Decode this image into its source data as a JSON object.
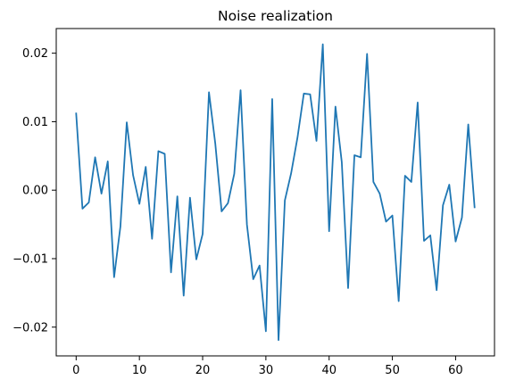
{
  "chart_data": {
    "type": "line",
    "title": "Noise realization",
    "xlabel": "",
    "ylabel": "",
    "xlim": [
      -3.15,
      66.15
    ],
    "ylim": [
      -0.0242,
      0.0236
    ],
    "grid": false,
    "x_ticks": [
      0,
      10,
      20,
      30,
      40,
      50,
      60
    ],
    "x_tick_labels": [
      "0",
      "10",
      "20",
      "30",
      "40",
      "50",
      "60"
    ],
    "y_ticks": [
      -0.02,
      -0.01,
      0.0,
      0.01,
      0.02
    ],
    "y_tick_labels": [
      "−0.02",
      "−0.01",
      "0.00",
      "0.01",
      "0.02"
    ],
    "series": [
      {
        "color": "#1f77b4",
        "x": [
          0,
          1,
          2,
          3,
          4,
          5,
          6,
          7,
          8,
          9,
          10,
          11,
          12,
          13,
          14,
          15,
          16,
          17,
          18,
          19,
          20,
          21,
          22,
          23,
          24,
          25,
          26,
          27,
          28,
          29,
          30,
          31,
          32,
          33,
          34,
          35,
          36,
          37,
          38,
          39,
          40,
          41,
          42,
          43,
          44,
          45,
          46,
          47,
          48,
          49,
          50,
          51,
          52,
          53,
          54,
          55,
          56,
          57,
          58,
          59,
          60,
          61,
          62,
          63
        ],
        "values": [
          0.0112,
          -0.0027,
          -0.0018,
          0.0048,
          -0.0005,
          0.0042,
          -0.0127,
          -0.0053,
          0.0099,
          0.0022,
          -0.002,
          0.0034,
          -0.0071,
          0.0057,
          0.0053,
          -0.012,
          -0.0009,
          -0.0154,
          -0.0011,
          -0.0101,
          -0.0064,
          0.0143,
          0.0068,
          -0.0031,
          -0.0019,
          0.0024,
          0.0146,
          -0.005,
          -0.013,
          -0.011,
          -0.0206,
          0.0133,
          -0.0219,
          -0.0015,
          0.0025,
          0.0077,
          0.0141,
          0.014,
          0.0072,
          0.0213,
          -0.006,
          0.0122,
          0.0041,
          -0.0143,
          0.0051,
          0.0048,
          0.0199,
          0.0012,
          -0.0005,
          -0.0046,
          -0.0037,
          -0.0162,
          0.0021,
          0.0012,
          0.0128,
          -0.0074,
          -0.0066,
          -0.0146,
          -0.0022,
          0.0008,
          -0.0075,
          -0.004,
          0.0096,
          -0.0025
        ]
      }
    ]
  }
}
